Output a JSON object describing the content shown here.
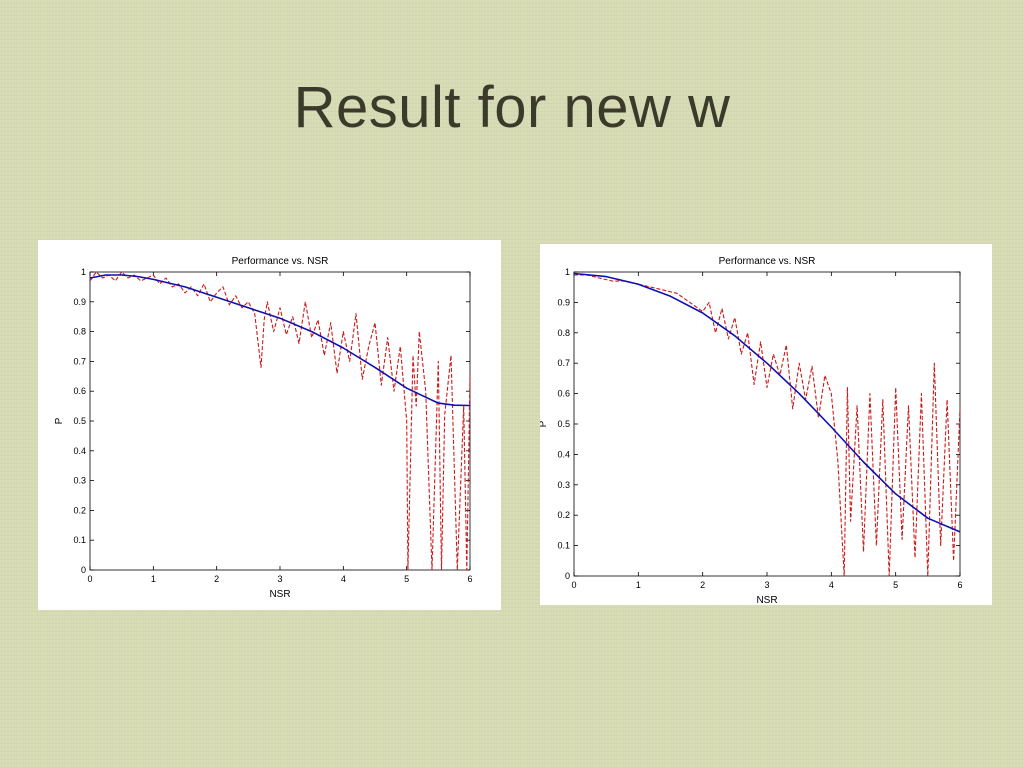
{
  "slide": {
    "title": "Result for new w"
  },
  "colors": {
    "smooth_series": "#1010b0",
    "noisy_series": "#cc1a1a",
    "axis": "#000000",
    "panel_bg": "#ffffff",
    "slide_bg": "#d7dbb4"
  },
  "chart_data": [
    {
      "type": "line",
      "title": "Performance vs. NSR",
      "xlabel": "NSR",
      "ylabel": "P",
      "xlim": [
        0,
        6
      ],
      "ylim": [
        0,
        1
      ],
      "xticks": [
        "0",
        "1",
        "2",
        "3",
        "4",
        "5",
        "6"
      ],
      "yticks": [
        "0",
        "0.1",
        "0.2",
        "0.3",
        "0.4",
        "0.5",
        "0.6",
        "0.7",
        "0.8",
        "0.9",
        "1"
      ],
      "grid": false,
      "series": [
        {
          "style": "solid",
          "color": "#1010b0",
          "x": [
            0,
            0.25,
            0.5,
            0.75,
            1,
            1.5,
            2,
            2.5,
            3,
            3.5,
            4,
            4.5,
            5,
            5.25,
            5.5,
            5.75,
            6
          ],
          "values": [
            0.98,
            0.99,
            0.99,
            0.985,
            0.975,
            0.95,
            0.915,
            0.88,
            0.845,
            0.8,
            0.745,
            0.68,
            0.61,
            0.585,
            0.56,
            0.553,
            0.552
          ]
        },
        {
          "style": "dashed",
          "color": "#cc1a1a",
          "x": [
            0,
            0.1,
            0.2,
            0.3,
            0.4,
            0.5,
            0.6,
            0.7,
            0.8,
            0.9,
            1,
            1.1,
            1.2,
            1.3,
            1.4,
            1.5,
            1.6,
            1.7,
            1.8,
            1.9,
            2,
            2.1,
            2.2,
            2.3,
            2.4,
            2.5,
            2.6,
            2.7,
            2.75,
            2.8,
            2.9,
            3,
            3.1,
            3.2,
            3.3,
            3.4,
            3.5,
            3.6,
            3.7,
            3.8,
            3.9,
            4,
            4.1,
            4.2,
            4.3,
            4.4,
            4.5,
            4.6,
            4.7,
            4.8,
            4.9,
            5,
            5.02,
            5.1,
            5.15,
            5.2,
            5.3,
            5.4,
            5.5,
            5.55,
            5.6,
            5.7,
            5.8,
            5.9,
            5.95,
            6
          ],
          "values": [
            0.97,
            1.0,
            0.98,
            0.99,
            0.97,
            1.0,
            0.98,
            0.99,
            0.97,
            0.98,
            0.99,
            0.96,
            0.98,
            0.95,
            0.96,
            0.93,
            0.95,
            0.92,
            0.96,
            0.9,
            0.93,
            0.95,
            0.89,
            0.92,
            0.88,
            0.9,
            0.86,
            0.68,
            0.84,
            0.9,
            0.8,
            0.88,
            0.79,
            0.85,
            0.76,
            0.9,
            0.78,
            0.84,
            0.72,
            0.83,
            0.66,
            0.8,
            0.7,
            0.86,
            0.64,
            0.75,
            0.83,
            0.62,
            0.78,
            0.6,
            0.75,
            0.5,
            0.0,
            0.72,
            0.55,
            0.8,
            0.6,
            0.0,
            0.7,
            0.0,
            0.52,
            0.72,
            0.0,
            0.55,
            0.0,
            0.65
          ]
        }
      ]
    },
    {
      "type": "line",
      "title": "Performance vs. NSR",
      "xlabel": "NSR",
      "ylabel": "P",
      "xlim": [
        0,
        6
      ],
      "ylim": [
        0,
        1
      ],
      "xticks": [
        "0",
        "1",
        "2",
        "3",
        "4",
        "5",
        "6"
      ],
      "yticks": [
        "0",
        "0.1",
        "0.2",
        "0.3",
        "0.4",
        "0.5",
        "0.6",
        "0.7",
        "0.8",
        "0.9",
        "1"
      ],
      "grid": false,
      "series": [
        {
          "style": "solid",
          "color": "#1010b0",
          "x": [
            0,
            0.5,
            1,
            1.5,
            2,
            2.5,
            3,
            3.5,
            4,
            4.5,
            5,
            5.5,
            6
          ],
          "values": [
            0.995,
            0.985,
            0.96,
            0.92,
            0.865,
            0.79,
            0.7,
            0.6,
            0.49,
            0.375,
            0.27,
            0.19,
            0.145
          ]
        },
        {
          "style": "dashed",
          "color": "#cc1a1a",
          "x": [
            0,
            0.2,
            0.4,
            0.6,
            0.8,
            1,
            1.2,
            1.4,
            1.6,
            1.8,
            2,
            2.1,
            2.2,
            2.3,
            2.4,
            2.5,
            2.6,
            2.7,
            2.8,
            2.9,
            3,
            3.1,
            3.2,
            3.3,
            3.4,
            3.5,
            3.6,
            3.7,
            3.8,
            3.9,
            4,
            4.1,
            4.2,
            4.25,
            4.3,
            4.4,
            4.5,
            4.6,
            4.7,
            4.8,
            4.9,
            5,
            5.1,
            5.2,
            5.3,
            5.4,
            5.5,
            5.6,
            5.7,
            5.8,
            5.9,
            6
          ],
          "values": [
            0.99,
            0.99,
            0.98,
            0.97,
            0.97,
            0.96,
            0.95,
            0.94,
            0.93,
            0.9,
            0.87,
            0.9,
            0.8,
            0.88,
            0.78,
            0.85,
            0.73,
            0.8,
            0.63,
            0.77,
            0.62,
            0.73,
            0.66,
            0.76,
            0.55,
            0.7,
            0.58,
            0.69,
            0.52,
            0.66,
            0.6,
            0.38,
            0.0,
            0.62,
            0.18,
            0.56,
            0.08,
            0.6,
            0.1,
            0.58,
            0.0,
            0.62,
            0.12,
            0.56,
            0.06,
            0.6,
            0.0,
            0.7,
            0.1,
            0.58,
            0.05,
            0.55
          ]
        }
      ]
    }
  ]
}
